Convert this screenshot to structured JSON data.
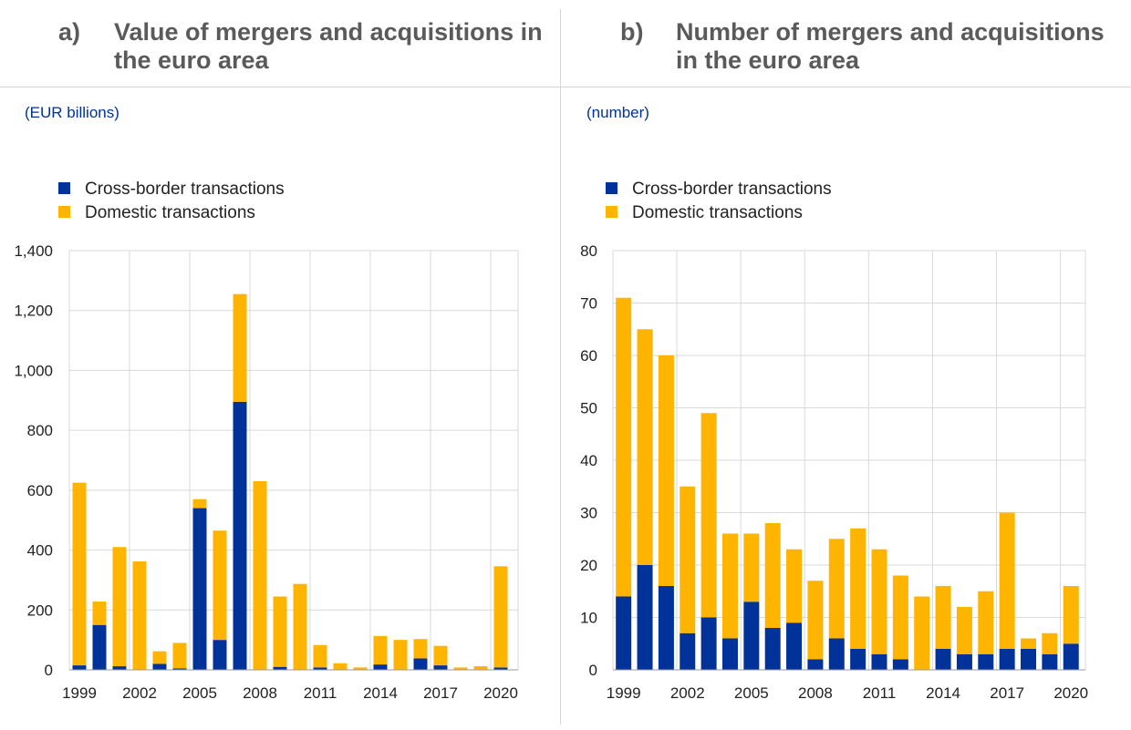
{
  "colors": {
    "cross_border": "#003299",
    "domestic": "#FFB400",
    "grid": "#d9d9d9",
    "title": "#5a5a5a",
    "unit": "#003299"
  },
  "panels": [
    {
      "letter": "a)",
      "title": "Value of mergers and acquisitions in the euro area",
      "unit": "(EUR billions)"
    },
    {
      "letter": "b)",
      "title": "Number of mergers and acquisitions in the euro area",
      "unit": "(number)"
    }
  ],
  "chart_data": [
    {
      "type": "bar",
      "stacked": true,
      "title": "Value of mergers and acquisitions in the euro area",
      "ylabel": "(EUR billions)",
      "ylim": [
        0,
        1400
      ],
      "yticks": [
        0,
        200,
        400,
        600,
        800,
        1000,
        1200,
        1400
      ],
      "ytick_labels": [
        "0",
        "200",
        "400",
        "600",
        "800",
        "1,000",
        "1,200",
        "1,400"
      ],
      "categories": [
        1999,
        2000,
        2001,
        2002,
        2003,
        2004,
        2005,
        2006,
        2007,
        2008,
        2009,
        2010,
        2011,
        2012,
        2013,
        2014,
        2015,
        2016,
        2017,
        2018,
        2019,
        2020
      ],
      "xtick_labels": [
        "1999",
        "2002",
        "2005",
        "2008",
        "2011",
        "2014",
        "2017",
        "2020"
      ],
      "series": [
        {
          "name": "Cross-border transactions",
          "values": [
            15,
            150,
            12,
            0,
            20,
            5,
            540,
            100,
            895,
            0,
            10,
            0,
            8,
            0,
            0,
            18,
            0,
            38,
            15,
            0,
            0,
            8
          ]
        },
        {
          "name": "Domestic transactions",
          "values": [
            610,
            78,
            398,
            362,
            42,
            85,
            30,
            365,
            360,
            630,
            235,
            287,
            75,
            22,
            8,
            95,
            100,
            65,
            65,
            8,
            12,
            338
          ]
        }
      ],
      "legend": "top-left",
      "grid": true
    },
    {
      "type": "bar",
      "stacked": true,
      "title": "Number of mergers and acquisitions in the euro area",
      "ylabel": "(number)",
      "ylim": [
        0,
        80
      ],
      "yticks": [
        0,
        10,
        20,
        30,
        40,
        50,
        60,
        70,
        80
      ],
      "ytick_labels": [
        "0",
        "10",
        "20",
        "30",
        "40",
        "50",
        "60",
        "70",
        "80"
      ],
      "categories": [
        1999,
        2000,
        2001,
        2002,
        2003,
        2004,
        2005,
        2006,
        2007,
        2008,
        2009,
        2010,
        2011,
        2012,
        2013,
        2014,
        2015,
        2016,
        2017,
        2018,
        2019,
        2020
      ],
      "xtick_labels": [
        "1999",
        "2002",
        "2005",
        "2008",
        "2011",
        "2014",
        "2017",
        "2020"
      ],
      "series": [
        {
          "name": "Cross-border transactions",
          "values": [
            14,
            20,
            16,
            7,
            10,
            6,
            13,
            8,
            9,
            2,
            6,
            4,
            3,
            2,
            0,
            4,
            3,
            3,
            4,
            4,
            3,
            5
          ]
        },
        {
          "name": "Domestic transactions",
          "values": [
            57,
            45,
            44,
            28,
            39,
            20,
            13,
            20,
            14,
            15,
            19,
            23,
            20,
            16,
            14,
            12,
            9,
            12,
            26,
            2,
            4,
            11
          ]
        }
      ],
      "legend": "top-left",
      "grid": true
    }
  ]
}
